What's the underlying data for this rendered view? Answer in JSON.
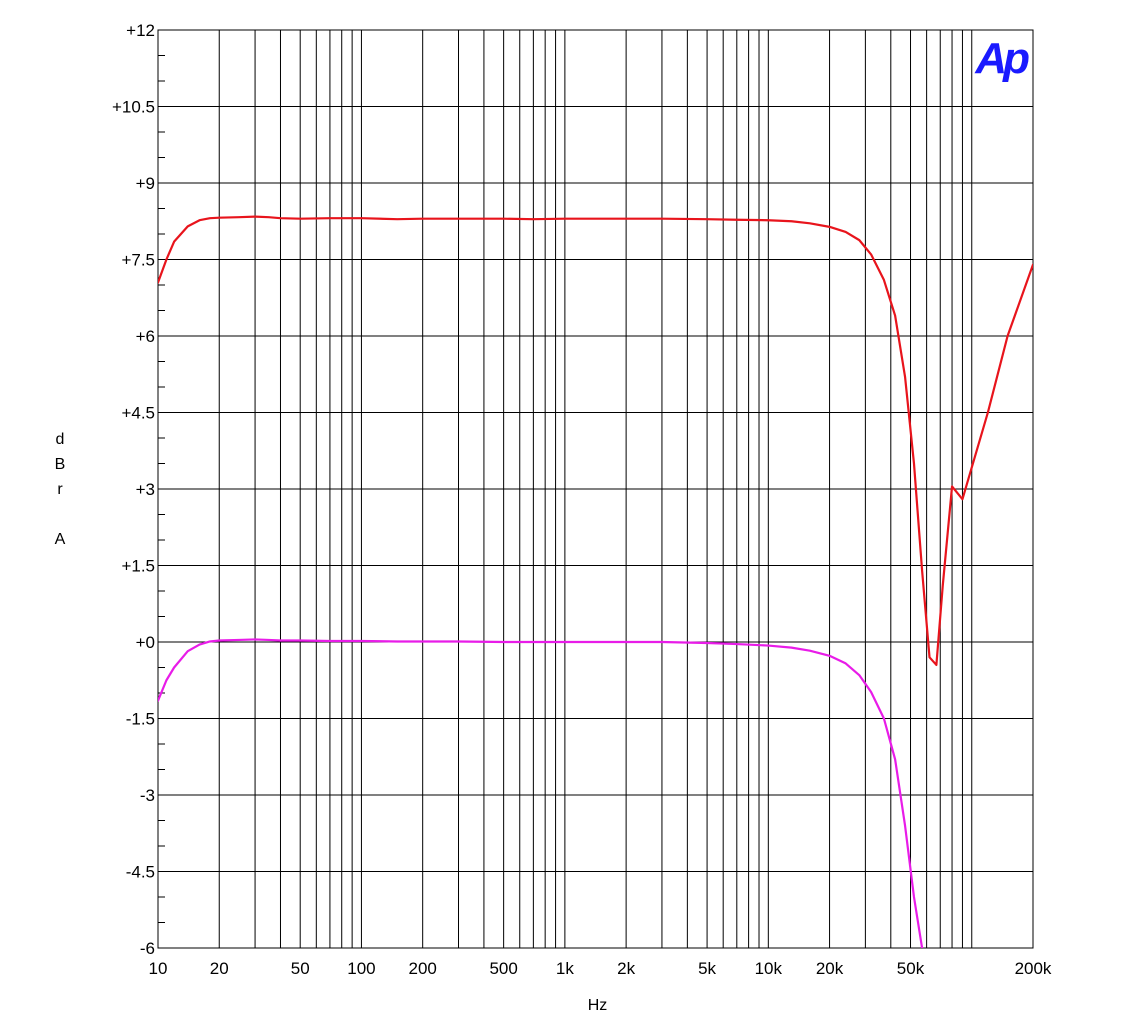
{
  "chart_data": {
    "type": "line",
    "title": "",
    "xlabel": "Hz",
    "ylabel": "dBr A",
    "ylabel_chars": [
      "d",
      "B",
      "r",
      "",
      "A"
    ],
    "x_scale": "log",
    "xlim": [
      10,
      200000
    ],
    "ylim": [
      -6,
      12
    ],
    "grid": true,
    "legend": "none",
    "logo": "Ap",
    "logo_color": "#1a1aff",
    "x_ticks": [
      {
        "value": 10,
        "label": "10"
      },
      {
        "value": 20,
        "label": "20"
      },
      {
        "value": 50,
        "label": "50"
      },
      {
        "value": 100,
        "label": "100"
      },
      {
        "value": 200,
        "label": "200"
      },
      {
        "value": 500,
        "label": "500"
      },
      {
        "value": 1000,
        "label": "1k"
      },
      {
        "value": 2000,
        "label": "2k"
      },
      {
        "value": 5000,
        "label": "5k"
      },
      {
        "value": 10000,
        "label": "10k"
      },
      {
        "value": 20000,
        "label": "20k"
      },
      {
        "value": 50000,
        "label": "50k"
      },
      {
        "value": 200000,
        "label": "200k"
      }
    ],
    "y_ticks": [
      {
        "value": 12,
        "label": "+12"
      },
      {
        "value": 10.5,
        "label": "+10.5"
      },
      {
        "value": 9,
        "label": "+9"
      },
      {
        "value": 7.5,
        "label": "+7.5"
      },
      {
        "value": 6,
        "label": "+6"
      },
      {
        "value": 4.5,
        "label": "+4.5"
      },
      {
        "value": 3,
        "label": "+3"
      },
      {
        "value": 1.5,
        "label": "+1.5"
      },
      {
        "value": 0,
        "label": "+0"
      },
      {
        "value": -1.5,
        "label": "-1.5"
      },
      {
        "value": -3,
        "label": "-3"
      },
      {
        "value": -4.5,
        "label": "-4.5"
      },
      {
        "value": -6,
        "label": "-6"
      }
    ],
    "series": [
      {
        "color": "#e8141c",
        "x": [
          10,
          11,
          12,
          14,
          16,
          18,
          20,
          25,
          30,
          35,
          40,
          50,
          70,
          100,
          150,
          200,
          300,
          500,
          700,
          1000,
          2000,
          3000,
          5000,
          7000,
          10000,
          13000,
          16000,
          20000,
          24000,
          28000,
          32000,
          37000,
          42000,
          47000,
          52000,
          57000,
          62000,
          67000,
          72000,
          80000,
          90000,
          120000,
          150000,
          200000
        ],
        "y": [
          7.05,
          7.5,
          7.85,
          8.15,
          8.27,
          8.31,
          8.32,
          8.33,
          8.34,
          8.33,
          8.31,
          8.3,
          8.31,
          8.31,
          8.29,
          8.3,
          8.3,
          8.3,
          8.29,
          8.3,
          8.3,
          8.3,
          8.29,
          8.28,
          8.27,
          8.25,
          8.21,
          8.14,
          8.04,
          7.88,
          7.6,
          7.1,
          6.4,
          5.2,
          3.5,
          1.4,
          -0.3,
          -0.45,
          1.1,
          3.05,
          2.8,
          4.5,
          6.0,
          7.4
        ]
      },
      {
        "color": "#e81ce8",
        "x": [
          10,
          11,
          12,
          14,
          16,
          18,
          20,
          25,
          30,
          35,
          40,
          50,
          70,
          100,
          150,
          200,
          300,
          500,
          700,
          1000,
          2000,
          3000,
          5000,
          7000,
          10000,
          13000,
          16000,
          20000,
          24000,
          28000,
          32000,
          37000,
          42000,
          47000,
          52000,
          57000
        ],
        "y": [
          -1.15,
          -0.75,
          -0.5,
          -0.18,
          -0.05,
          0.01,
          0.03,
          0.04,
          0.05,
          0.04,
          0.03,
          0.03,
          0.02,
          0.02,
          0.01,
          0.01,
          0.01,
          0.0,
          0.0,
          0.0,
          0.0,
          0.0,
          -0.02,
          -0.04,
          -0.07,
          -0.11,
          -0.17,
          -0.27,
          -0.42,
          -0.65,
          -0.98,
          -1.5,
          -2.3,
          -3.6,
          -5.0,
          -6.0
        ]
      }
    ]
  }
}
